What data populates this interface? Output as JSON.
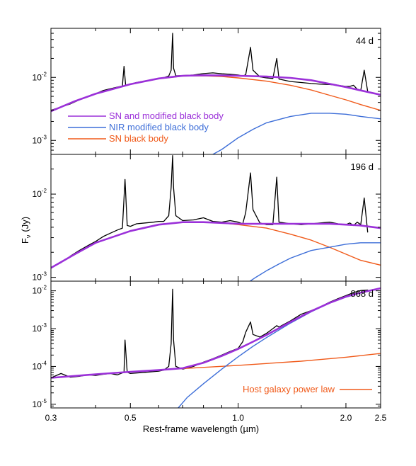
{
  "chart_data": {
    "type": "line",
    "xscale": "log",
    "yscale": "log",
    "xlim": [
      0.3,
      2.5
    ],
    "xlabel": "Rest-frame wavelength (µm)",
    "ylabel": "Fν (Jy)",
    "ylabel_main": "F",
    "ylabel_sub": "ν",
    "ylabel_unit": "(Jy)",
    "xticks": [
      {
        "value": 0.3,
        "label": "0.3"
      },
      {
        "value": 0.5,
        "label": "0.5"
      },
      {
        "value": 1.0,
        "label": "1.0"
      },
      {
        "value": 2.0,
        "label": "2.0"
      },
      {
        "value": 2.5,
        "label": "2.5"
      }
    ],
    "colors": {
      "spectrum": "#000000",
      "combined": "#9b30d9",
      "nir": "#3d6ed8",
      "sn": "#f05a1a"
    },
    "panels": [
      {
        "epoch": "44 d",
        "ylim": [
          0.0006,
          0.06
        ],
        "yticks": [
          {
            "value": 0.001,
            "mantissa": "10",
            "exponent": "-3"
          },
          {
            "value": 0.01,
            "mantissa": "10",
            "exponent": "-2"
          }
        ],
        "legend": [
          {
            "label": "SN and modified black body",
            "series": "combined"
          },
          {
            "label": "NIR modified black body",
            "series": "nir"
          },
          {
            "label": "SN black body",
            "series": "sn"
          }
        ],
        "series": [
          {
            "key": "sn",
            "x": [
              0.3,
              0.35,
              0.4,
              0.5,
              0.6,
              0.7,
              0.8,
              0.9,
              1.0,
              1.2,
              1.4,
              1.6,
              1.8,
              2.0,
              2.2,
              2.5
            ],
            "y": [
              0.0029,
              0.0042,
              0.0055,
              0.0078,
              0.0095,
              0.0105,
              0.0106,
              0.0103,
              0.0098,
              0.0087,
              0.0075,
              0.0063,
              0.0052,
              0.0044,
              0.0037,
              0.003
            ]
          },
          {
            "key": "nir",
            "x": [
              0.85,
              0.9,
              1.0,
              1.1,
              1.2,
              1.4,
              1.6,
              1.8,
              2.0,
              2.2,
              2.5
            ],
            "y": [
              0.0006,
              0.00072,
              0.0011,
              0.0015,
              0.0019,
              0.0024,
              0.0027,
              0.0027,
              0.0026,
              0.0024,
              0.0022
            ]
          },
          {
            "key": "combined",
            "x": [
              0.3,
              0.35,
              0.4,
              0.5,
              0.6,
              0.7,
              0.8,
              0.9,
              1.0,
              1.2,
              1.4,
              1.6,
              1.8,
              2.0,
              2.2,
              2.5
            ],
            "y": [
              0.0029,
              0.0042,
              0.0055,
              0.0078,
              0.0096,
              0.0106,
              0.0108,
              0.0107,
              0.0106,
              0.0103,
              0.0098,
              0.009,
              0.0079,
              0.007,
              0.0062,
              0.0053
            ]
          },
          {
            "key": "spectrum",
            "x": [
              0.3,
              0.32,
              0.34,
              0.36,
              0.38,
              0.4,
              0.42,
              0.44,
              0.46,
              0.475,
              0.48,
              0.485,
              0.5,
              0.52,
              0.55,
              0.58,
              0.6,
              0.62,
              0.64,
              0.65,
              0.656,
              0.66,
              0.67,
              0.7,
              0.75,
              0.8,
              0.85,
              0.9,
              0.95,
              1.0,
              1.03,
              1.05,
              1.083,
              1.1,
              1.15,
              1.2,
              1.25,
              1.282,
              1.3,
              1.4,
              1.5,
              1.6,
              1.7,
              1.8,
              1.9,
              2.0,
              2.05,
              2.1,
              2.15,
              2.2,
              2.25,
              2.3
            ],
            "y": [
              0.003,
              0.0034,
              0.0038,
              0.0044,
              0.0049,
              0.0055,
              0.0062,
              0.0066,
              0.007,
              0.0073,
              0.015,
              0.0075,
              0.0078,
              0.0083,
              0.0088,
              0.0092,
              0.0095,
              0.0099,
              0.0105,
              0.013,
              0.05,
              0.014,
              0.0106,
              0.0107,
              0.0109,
              0.0115,
              0.0118,
              0.0114,
              0.0112,
              0.0109,
              0.0105,
              0.011,
              0.03,
              0.013,
              0.0102,
              0.0098,
              0.0096,
              0.02,
              0.0094,
              0.0086,
              0.0083,
              0.008,
              0.0078,
              0.0077,
              0.0075,
              0.0072,
              0.0072,
              0.0075,
              0.0065,
              0.0062,
              0.013,
              0.006
            ]
          }
        ]
      },
      {
        "epoch": "196 d",
        "ylim": [
          0.0009,
          0.03
        ],
        "yticks": [
          {
            "value": 0.001,
            "mantissa": "10",
            "exponent": "-3"
          },
          {
            "value": 0.01,
            "mantissa": "10",
            "exponent": "-2"
          }
        ],
        "legend": [],
        "series": [
          {
            "key": "sn",
            "x": [
              0.3,
              0.35,
              0.4,
              0.5,
              0.6,
              0.7,
              0.8,
              0.9,
              1.0,
              1.2,
              1.4,
              1.6,
              1.8,
              2.0,
              2.2,
              2.5
            ],
            "y": [
              0.0013,
              0.0019,
              0.0026,
              0.0036,
              0.0043,
              0.0046,
              0.0046,
              0.0045,
              0.0043,
              0.0039,
              0.0033,
              0.0028,
              0.0023,
              0.0019,
              0.0016,
              0.0014
            ]
          },
          {
            "key": "nir",
            "x": [
              1.08,
              1.12,
              1.2,
              1.3,
              1.4,
              1.6,
              1.8,
              2.0,
              2.2,
              2.5
            ],
            "y": [
              0.0009,
              0.001,
              0.0012,
              0.00145,
              0.0017,
              0.0021,
              0.0023,
              0.0025,
              0.0026,
              0.0026
            ]
          },
          {
            "key": "combined",
            "x": [
              0.3,
              0.35,
              0.4,
              0.5,
              0.6,
              0.7,
              0.8,
              0.9,
              1.0,
              1.2,
              1.4,
              1.6,
              1.8,
              2.0,
              2.2,
              2.5
            ],
            "y": [
              0.0013,
              0.0019,
              0.0026,
              0.0036,
              0.0043,
              0.0046,
              0.0046,
              0.0045,
              0.0044,
              0.0044,
              0.0044,
              0.0044,
              0.0044,
              0.0043,
              0.0042,
              0.0039
            ]
          },
          {
            "key": "spectrum",
            "x": [
              0.3,
              0.32,
              0.34,
              0.36,
              0.38,
              0.4,
              0.42,
              0.44,
              0.46,
              0.475,
              0.483,
              0.49,
              0.5,
              0.52,
              0.55,
              0.58,
              0.6,
              0.62,
              0.64,
              0.65,
              0.656,
              0.66,
              0.67,
              0.7,
              0.75,
              0.8,
              0.85,
              0.9,
              0.95,
              1.0,
              1.03,
              1.05,
              1.083,
              1.1,
              1.15,
              1.2,
              1.25,
              1.282,
              1.3,
              1.4,
              1.5,
              1.6,
              1.7,
              1.8,
              1.9,
              2.0,
              2.05,
              2.1,
              2.15,
              2.2,
              2.25,
              2.3
            ],
            "y": [
              0.0013,
              0.0015,
              0.0018,
              0.0021,
              0.0024,
              0.0027,
              0.0031,
              0.0034,
              0.0037,
              0.0039,
              0.015,
              0.0042,
              0.0041,
              0.0044,
              0.0045,
              0.0046,
              0.0047,
              0.0047,
              0.0055,
              0.012,
              0.029,
              0.012,
              0.0055,
              0.0048,
              0.0049,
              0.0052,
              0.0047,
              0.0046,
              0.0048,
              0.0046,
              0.0044,
              0.006,
              0.018,
              0.0065,
              0.0045,
              0.0043,
              0.0043,
              0.016,
              0.0046,
              0.0044,
              0.0043,
              0.0044,
              0.0045,
              0.0046,
              0.0044,
              0.0043,
              0.0045,
              0.0042,
              0.0046,
              0.0043,
              0.009,
              0.0035
            ]
          }
        ]
      },
      {
        "epoch": "868 d",
        "ylim": [
          8e-06,
          0.018
        ],
        "yticks": [
          {
            "value": 1e-05,
            "mantissa": "10",
            "exponent": "-5"
          },
          {
            "value": 0.0001,
            "mantissa": "10",
            "exponent": "-4"
          },
          {
            "value": 0.001,
            "mantissa": "10",
            "exponent": "-3"
          },
          {
            "value": 0.01,
            "mantissa": "10",
            "exponent": "-2"
          }
        ],
        "legend": [
          {
            "label": "Host galaxy power law",
            "series": "sn"
          }
        ],
        "series": [
          {
            "key": "sn",
            "x": [
              0.3,
              0.4,
              0.5,
              0.7,
              1.0,
              1.5,
              2.0,
              2.5
            ],
            "y": [
              5e-05,
              6.2e-05,
              7.2e-05,
              8.8e-05,
              0.000107,
              0.000138,
              0.000175,
              0.00022
            ]
          },
          {
            "key": "nir",
            "x": [
              0.68,
              0.72,
              0.8,
              0.9,
              1.0,
              1.1,
              1.2,
              1.4,
              1.6,
              1.8,
              2.0,
              2.2,
              2.5
            ],
            "y": [
              8e-06,
              1.5e-05,
              3.5e-05,
              8.5e-05,
              0.00018,
              0.00034,
              0.00058,
              0.0014,
              0.0028,
              0.0047,
              0.0068,
              0.0088,
              0.0115
            ]
          },
          {
            "key": "combined",
            "x": [
              0.3,
              0.4,
              0.5,
              0.6,
              0.7,
              0.8,
              0.9,
              1.0,
              1.1,
              1.2,
              1.4,
              1.6,
              1.8,
              2.0,
              2.2,
              2.5
            ],
            "y": [
              5e-05,
              6.2e-05,
              7.2e-05,
              8e-05,
              9e-05,
              0.000125,
              0.00019,
              0.00029,
              0.00045,
              0.00068,
              0.0015,
              0.0029,
              0.0048,
              0.007,
              0.009,
              0.0117
            ]
          },
          {
            "key": "spectrum",
            "x": [
              0.3,
              0.32,
              0.34,
              0.36,
              0.38,
              0.4,
              0.42,
              0.44,
              0.46,
              0.48,
              0.483,
              0.49,
              0.5,
              0.55,
              0.6,
              0.62,
              0.64,
              0.65,
              0.656,
              0.66,
              0.67,
              0.7,
              0.75,
              0.8,
              0.85,
              0.9,
              0.95,
              1.0,
              1.03,
              1.05,
              1.083,
              1.1,
              1.15,
              1.2,
              1.25,
              1.282,
              1.3,
              1.4,
              1.5,
              1.6,
              1.7,
              1.8,
              1.9,
              2.0,
              2.1,
              2.2,
              2.3
            ],
            "y": [
              5e-05,
              6.5e-05,
              5.2e-05,
              5.5e-05,
              6e-05,
              5.8e-05,
              6.2e-05,
              6.5e-05,
              6e-05,
              7e-05,
              0.0005,
              7e-05,
              6.5e-05,
              7e-05,
              7.5e-05,
              8e-05,
              0.0001,
              0.0004,
              0.011,
              0.0005,
              0.0001,
              8.5e-05,
              0.0001,
              0.00013,
              0.00016,
              0.0002,
              0.00025,
              0.0003,
              0.00045,
              0.0008,
              0.0015,
              0.0007,
              0.0006,
              0.00075,
              0.001,
              0.0012,
              0.0011,
              0.0016,
              0.0024,
              0.003,
              0.0038,
              0.005,
              0.0062,
              0.0075,
              0.009,
              0.0102,
              0.0105
            ]
          }
        ]
      }
    ]
  }
}
